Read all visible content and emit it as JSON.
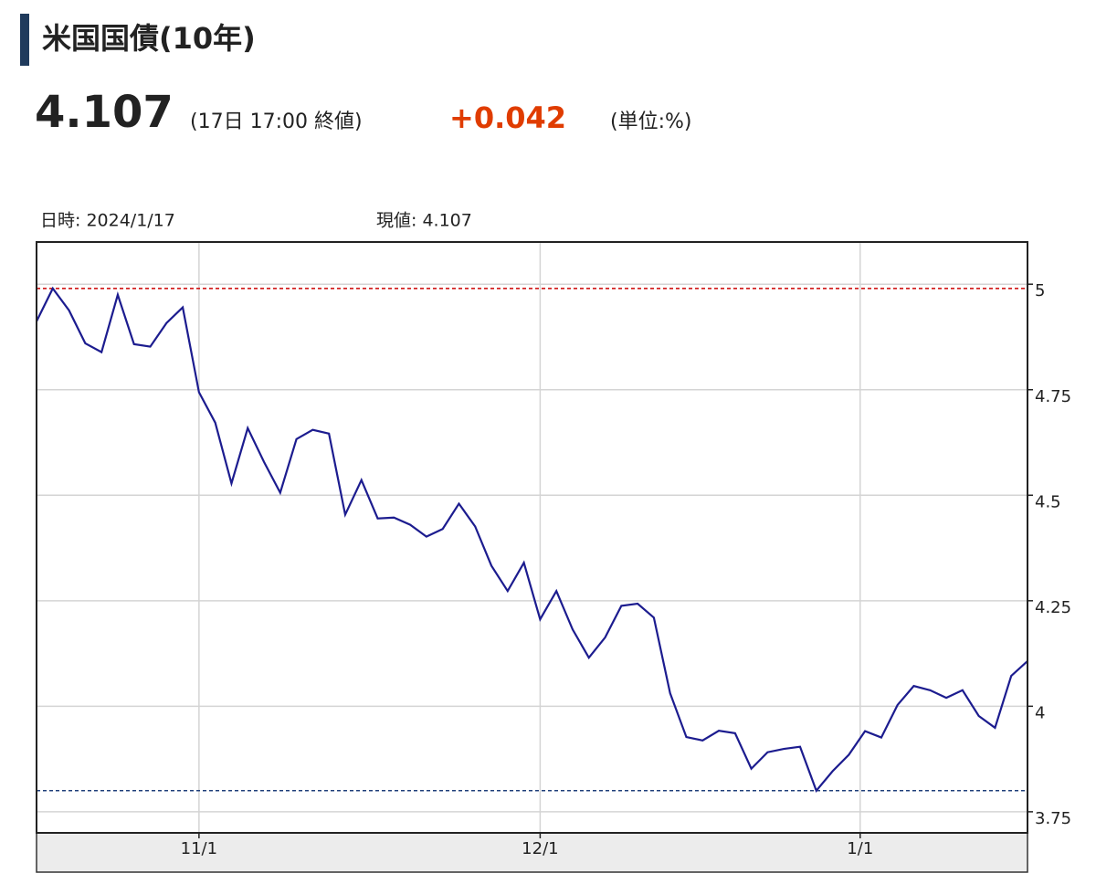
{
  "header": {
    "title": "米国国債(10年)",
    "price": "4.107",
    "time_note": "(17日 17:00 終値)",
    "change": "+0.042",
    "unit": "(単位:%)"
  },
  "chart_data": {
    "type": "line",
    "info_date": "日時: 2024/1/17",
    "info_value": "現値: 4.107",
    "series": [
      {
        "color": "#1c1c8f",
        "values": [
          4.912,
          4.99,
          4.938,
          4.86,
          4.839,
          4.975,
          4.858,
          4.852,
          4.908,
          4.945,
          4.744,
          4.672,
          4.528,
          4.659,
          4.579,
          4.506,
          4.633,
          4.655,
          4.646,
          4.454,
          4.536,
          4.445,
          4.447,
          4.43,
          4.402,
          4.42,
          4.48,
          4.426,
          4.333,
          4.273,
          4.34,
          4.206,
          4.273,
          4.182,
          4.115,
          4.163,
          4.238,
          4.243,
          4.21,
          4.031,
          3.927,
          3.919,
          3.942,
          3.936,
          3.852,
          3.891,
          3.899,
          3.904,
          3.8,
          3.846,
          3.885,
          3.941,
          3.926,
          4.003,
          4.048,
          4.038,
          4.02,
          4.038,
          3.977,
          3.949,
          4.072,
          4.107
        ]
      }
    ],
    "max_line": {
      "value": 4.99,
      "color": "#cc0000"
    },
    "min_line": {
      "value": 3.8,
      "color": "#1f3f7a"
    },
    "xlim": [
      0,
      61
    ],
    "xticks": [
      {
        "value": 10,
        "label": "11/1"
      },
      {
        "value": 31,
        "label": "12/1"
      },
      {
        "value": 50.7,
        "label": "1/1"
      }
    ],
    "ylim": [
      3.7,
      5.1
    ],
    "yticks": [
      3.75,
      4,
      4.25,
      4.5,
      4.75,
      5
    ],
    "grid": true
  }
}
